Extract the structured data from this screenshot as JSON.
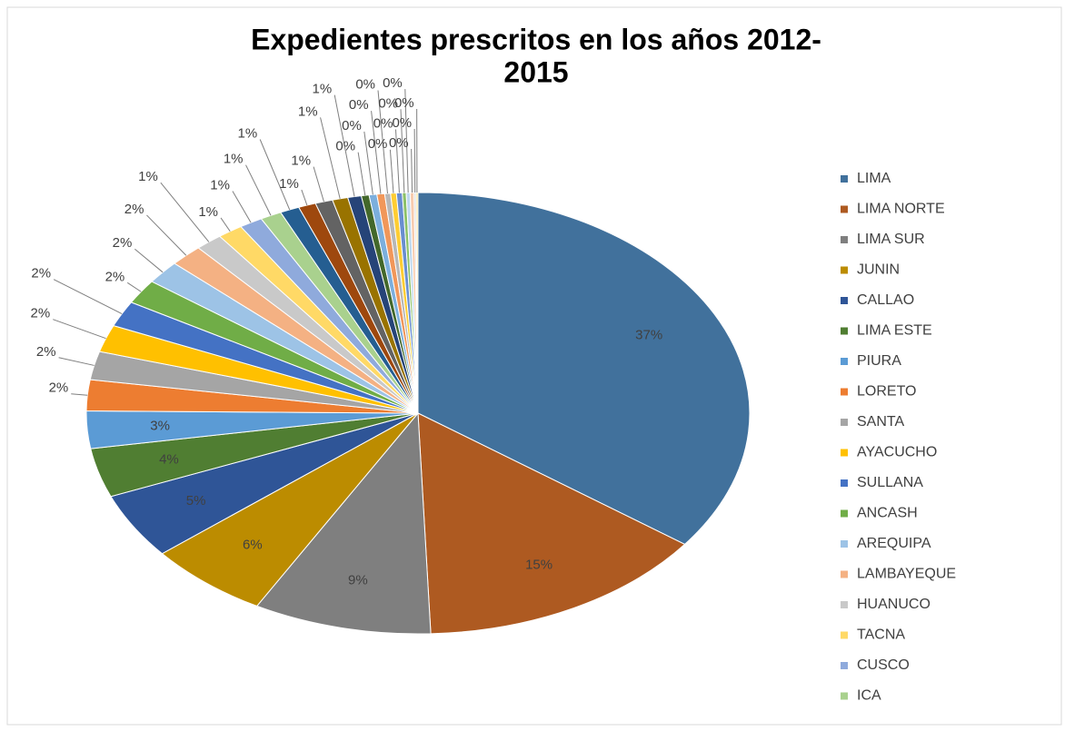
{
  "chart_data": {
    "type": "pie",
    "title": [
      "Expedientes prescritos en los años 2012-",
      "2015"
    ],
    "categories": [
      "LIMA",
      "LIMA NORTE",
      "LIMA SUR",
      "JUNIN",
      "CALLAO",
      "LIMA ESTE",
      "PIURA",
      "LORETO",
      "SANTA",
      "AYACUCHO",
      "SULLANA",
      "ANCASH",
      "AREQUIPA",
      "LAMBAYEQUE",
      "HUANUCO",
      "TACNA",
      "CUSCO",
      "ICA",
      null,
      null,
      null,
      null,
      null,
      null,
      null,
      null,
      null,
      null,
      null,
      null,
      null,
      null,
      null,
      null
    ],
    "values": [
      37.2,
      15.1,
      9.2,
      6.3,
      5.1,
      3.8,
      2.9,
      2.4,
      2.2,
      2.1,
      2.0,
      1.9,
      1.8,
      1.7,
      1.4,
      1.3,
      1.2,
      1.1,
      1.0,
      0.9,
      0.9,
      0.8,
      0.7,
      0.4,
      0.4,
      0.4,
      0.3,
      0.3,
      0.3,
      0.2,
      0.2,
      0.2,
      0.1,
      0.1
    ],
    "value_labels": [
      "37%",
      "15%",
      "9%",
      "6%",
      "5%",
      "4%",
      "3%",
      "2%",
      "2%",
      "2%",
      "2%",
      "2%",
      "2%",
      "2%",
      "1%",
      "1%",
      "1%",
      "1%",
      "1%",
      "1%",
      "1%",
      "1%",
      "1%",
      "0%",
      "0%",
      "0%",
      "0%",
      "0%",
      "0%",
      "0%",
      "0%",
      "0%",
      "0%",
      "0%"
    ],
    "colors": [
      "#41719c",
      "#ae5a21",
      "#7f7f7f",
      "#bc8c00",
      "#2f5597",
      "#507e32",
      "#5b9bd5",
      "#ed7d31",
      "#a5a5a5",
      "#ffc000",
      "#4472c4",
      "#70ad47",
      "#9dc3e6",
      "#f4b183",
      "#c9c9c9",
      "#ffd966",
      "#8faadc",
      "#a9d18e",
      "#255e91",
      "#9e480e",
      "#636363",
      "#997300",
      "#264478",
      "#43682b",
      "#7cafdd",
      "#f1975a",
      "#b7b7b7",
      "#ffcd33",
      "#698ed0",
      "#8cc168",
      "#bdd7ee",
      "#f8cbad",
      "#dbdbdb",
      "#ffe699"
    ],
    "legend": "right"
  }
}
